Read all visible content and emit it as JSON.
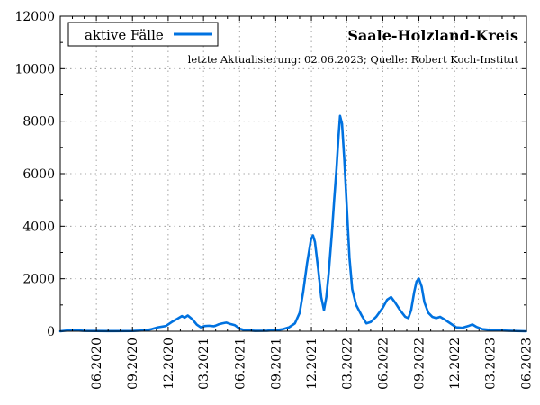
{
  "chart_data": {
    "type": "line",
    "title": "Saale-Holzland-Kreis",
    "subtitle": "letzte Aktualisierung: 02.06.2023; Quelle: Robert Koch-Institut",
    "xlabel": "",
    "ylabel": "",
    "ylim": [
      0,
      12000
    ],
    "yticks": [
      0,
      2000,
      4000,
      6000,
      8000,
      10000,
      12000
    ],
    "xlim": [
      "2020-03-01",
      "2023-06-02"
    ],
    "xticks": [
      {
        "date": "2020-06-01",
        "label": "06.2020"
      },
      {
        "date": "2020-09-01",
        "label": "09.2020"
      },
      {
        "date": "2020-12-01",
        "label": "12.2020"
      },
      {
        "date": "2021-03-01",
        "label": "03.2021"
      },
      {
        "date": "2021-06-01",
        "label": "06.2021"
      },
      {
        "date": "2021-09-01",
        "label": "09.2021"
      },
      {
        "date": "2021-12-01",
        "label": "12.2021"
      },
      {
        "date": "2022-03-01",
        "label": "03.2022"
      },
      {
        "date": "2022-06-01",
        "label": "06.2022"
      },
      {
        "date": "2022-09-01",
        "label": "09.2022"
      },
      {
        "date": "2022-12-01",
        "label": "12.2022"
      },
      {
        "date": "2023-03-01",
        "label": "03.2023"
      },
      {
        "date": "2023-06-01",
        "label": "06.2023"
      }
    ],
    "grid": true,
    "legend_position": "top-left",
    "series": [
      {
        "name": "aktive Fälle",
        "color": "#0072e0",
        "points": [
          [
            "2020-03-01",
            0
          ],
          [
            "2020-03-20",
            30
          ],
          [
            "2020-04-05",
            40
          ],
          [
            "2020-05-01",
            15
          ],
          [
            "2020-07-01",
            5
          ],
          [
            "2020-09-01",
            10
          ],
          [
            "2020-10-01",
            30
          ],
          [
            "2020-10-20",
            80
          ],
          [
            "2020-11-05",
            150
          ],
          [
            "2020-11-25",
            200
          ],
          [
            "2020-12-10",
            350
          ],
          [
            "2020-12-25",
            480
          ],
          [
            "2021-01-05",
            580
          ],
          [
            "2021-01-12",
            520
          ],
          [
            "2021-01-20",
            600
          ],
          [
            "2021-02-01",
            450
          ],
          [
            "2021-02-12",
            250
          ],
          [
            "2021-02-22",
            150
          ],
          [
            "2021-03-05",
            200
          ],
          [
            "2021-03-15",
            210
          ],
          [
            "2021-03-28",
            190
          ],
          [
            "2021-04-08",
            260
          ],
          [
            "2021-04-18",
            300
          ],
          [
            "2021-04-28",
            330
          ],
          [
            "2021-05-08",
            280
          ],
          [
            "2021-05-20",
            230
          ],
          [
            "2021-06-01",
            100
          ],
          [
            "2021-06-15",
            40
          ],
          [
            "2021-07-10",
            15
          ],
          [
            "2021-08-10",
            20
          ],
          [
            "2021-09-01",
            40
          ],
          [
            "2021-09-20",
            80
          ],
          [
            "2021-10-05",
            150
          ],
          [
            "2021-10-20",
            300
          ],
          [
            "2021-11-01",
            700
          ],
          [
            "2021-11-10",
            1500
          ],
          [
            "2021-11-20",
            2600
          ],
          [
            "2021-11-30",
            3500
          ],
          [
            "2021-12-05",
            3650
          ],
          [
            "2021-12-10",
            3400
          ],
          [
            "2021-12-18",
            2400
          ],
          [
            "2021-12-26",
            1300
          ],
          [
            "2022-01-02",
            800
          ],
          [
            "2022-01-08",
            1300
          ],
          [
            "2022-01-14",
            2200
          ],
          [
            "2022-01-22",
            3700
          ],
          [
            "2022-01-28",
            5000
          ],
          [
            "2022-02-03",
            6200
          ],
          [
            "2022-02-08",
            7400
          ],
          [
            "2022-02-12",
            8200
          ],
          [
            "2022-02-17",
            7900
          ],
          [
            "2022-02-23",
            6500
          ],
          [
            "2022-03-02",
            4500
          ],
          [
            "2022-03-08",
            2800
          ],
          [
            "2022-03-15",
            1600
          ],
          [
            "2022-03-25",
            1000
          ],
          [
            "2022-04-08",
            600
          ],
          [
            "2022-04-20",
            300
          ],
          [
            "2022-05-01",
            350
          ],
          [
            "2022-05-15",
            550
          ],
          [
            "2022-06-01",
            900
          ],
          [
            "2022-06-12",
            1200
          ],
          [
            "2022-06-22",
            1300
          ],
          [
            "2022-07-02",
            1100
          ],
          [
            "2022-07-15",
            800
          ],
          [
            "2022-07-28",
            550
          ],
          [
            "2022-08-05",
            500
          ],
          [
            "2022-08-12",
            800
          ],
          [
            "2022-08-20",
            1500
          ],
          [
            "2022-08-26",
            1900
          ],
          [
            "2022-09-01",
            2000
          ],
          [
            "2022-09-08",
            1700
          ],
          [
            "2022-09-15",
            1100
          ],
          [
            "2022-09-25",
            700
          ],
          [
            "2022-10-05",
            550
          ],
          [
            "2022-10-15",
            500
          ],
          [
            "2022-10-25",
            550
          ],
          [
            "2022-11-05",
            450
          ],
          [
            "2022-11-20",
            300
          ],
          [
            "2022-12-05",
            150
          ],
          [
            "2022-12-20",
            130
          ],
          [
            "2023-01-05",
            200
          ],
          [
            "2023-01-15",
            260
          ],
          [
            "2023-01-25",
            170
          ],
          [
            "2023-02-10",
            80
          ],
          [
            "2023-03-10",
            40
          ],
          [
            "2023-04-15",
            20
          ],
          [
            "2023-06-01",
            0
          ]
        ]
      }
    ]
  }
}
